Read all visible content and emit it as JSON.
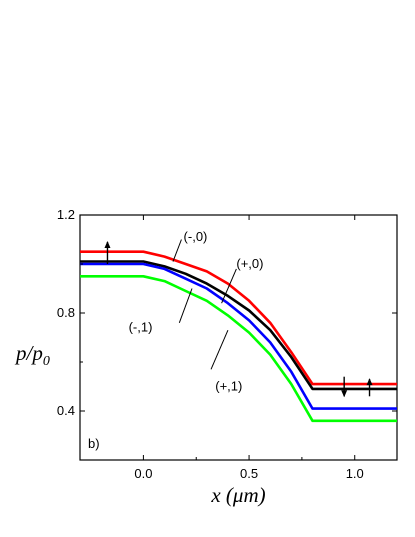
{
  "chart_data": {
    "type": "line",
    "panel_label": "b)",
    "xlabel": "x (μm)",
    "ylabel_main": "p/p",
    "ylabel_sub": "0",
    "xlim": [
      -0.3,
      1.2
    ],
    "ylim": [
      0.2,
      1.2
    ],
    "xticks": [
      0.0,
      0.5,
      1.0
    ],
    "xtick_labels": [
      "0.0",
      "0.5",
      "1.0"
    ],
    "yticks": [
      0.4,
      0.8,
      1.2
    ],
    "ytick_labels": [
      "0.4",
      "0.8",
      "1.2"
    ],
    "series": [
      {
        "name": "(-,0)",
        "color": "#ff0000",
        "x": [
          -0.3,
          0.0,
          0.1,
          0.2,
          0.3,
          0.4,
          0.5,
          0.6,
          0.7,
          0.8,
          1.2
        ],
        "y": [
          1.05,
          1.05,
          1.03,
          1.0,
          0.97,
          0.92,
          0.85,
          0.76,
          0.64,
          0.51,
          0.51
        ]
      },
      {
        "name": "(+,0)",
        "color": "#000000",
        "x": [
          -0.3,
          0.0,
          0.1,
          0.2,
          0.3,
          0.4,
          0.5,
          0.6,
          0.7,
          0.8,
          1.2
        ],
        "y": [
          1.01,
          1.01,
          0.99,
          0.96,
          0.92,
          0.87,
          0.81,
          0.73,
          0.62,
          0.49,
          0.49
        ]
      },
      {
        "name": "(-,1)",
        "color": "#0000ff",
        "x": [
          -0.3,
          0.0,
          0.1,
          0.2,
          0.3,
          0.4,
          0.5,
          0.6,
          0.7,
          0.8,
          1.2
        ],
        "y": [
          1.0,
          1.0,
          0.98,
          0.94,
          0.9,
          0.84,
          0.77,
          0.68,
          0.56,
          0.41,
          0.41
        ]
      },
      {
        "name": "(+,1)",
        "color": "#00ff00",
        "x": [
          -0.3,
          0.0,
          0.1,
          0.2,
          0.3,
          0.4,
          0.5,
          0.6,
          0.7,
          0.8,
          1.2
        ],
        "y": [
          0.95,
          0.95,
          0.93,
          0.89,
          0.85,
          0.79,
          0.72,
          0.63,
          0.51,
          0.36,
          0.36
        ]
      }
    ],
    "annotations": [
      {
        "text": "(-,0)",
        "line": [
          [
            0.14,
            1.01
          ],
          [
            0.18,
            1.1
          ]
        ],
        "label_at": [
          0.19,
          1.11
        ]
      },
      {
        "text": "(+,0)",
        "line": [
          [
            0.37,
            0.84
          ],
          [
            0.44,
            0.98
          ]
        ],
        "label_at": [
          0.44,
          1.0
        ]
      },
      {
        "text": "(-,1)",
        "line": [
          [
            0.17,
            0.76
          ],
          [
            0.23,
            0.9
          ]
        ],
        "label_at": [
          -0.07,
          0.74
        ]
      },
      {
        "text": "(+,1)",
        "line": [
          [
            0.32,
            0.57
          ],
          [
            0.4,
            0.73
          ]
        ],
        "label_at": [
          0.34,
          0.5
        ]
      }
    ],
    "arrows": [
      {
        "x": -0.17,
        "y_from": 1.0,
        "y_to": 1.09,
        "direction": "up"
      },
      {
        "x": 0.95,
        "y_from": 0.54,
        "y_to": 0.46,
        "direction": "down"
      },
      {
        "x": 1.07,
        "y_from": 0.46,
        "y_to": 0.53,
        "direction": "up"
      }
    ]
  }
}
